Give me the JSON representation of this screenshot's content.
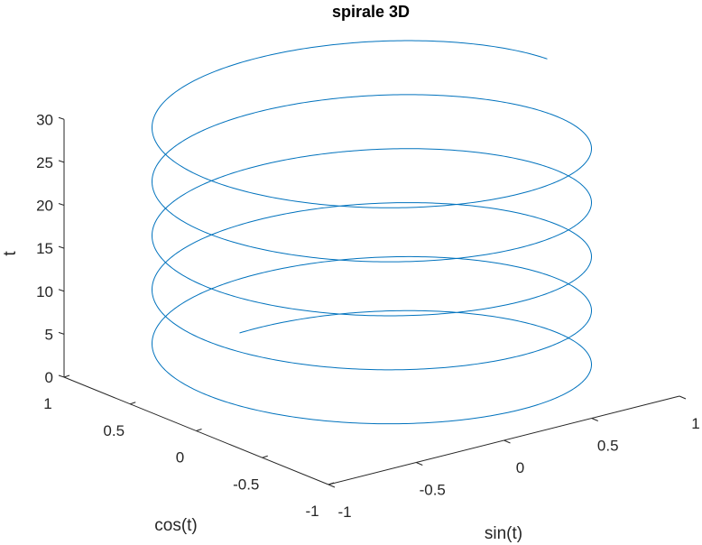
{
  "chart_data": {
    "type": "line",
    "projection": "3d",
    "title": "spirale 3D",
    "xlabel": "sin(t)",
    "ylabel": "cos(t)",
    "zlabel": "t",
    "xlim": [
      -1,
      1
    ],
    "ylim": [
      -1,
      1
    ],
    "zlim": [
      0,
      30
    ],
    "xticks": [
      "-1",
      "-0.5",
      "0",
      "0.5",
      "1"
    ],
    "yticks": [
      "-1",
      "-0.5",
      "0",
      "0.5",
      "1"
    ],
    "zticks": [
      "0",
      "5",
      "10",
      "15",
      "20",
      "25",
      "30"
    ],
    "series": [
      {
        "x_expr": "sin(t)",
        "y_expr": "cos(t)",
        "z_expr": "t",
        "t_range": [
          0,
          10.5
        ],
        "t_multiplier_pi": true,
        "color": "#0072bd"
      }
    ],
    "grid": false
  }
}
